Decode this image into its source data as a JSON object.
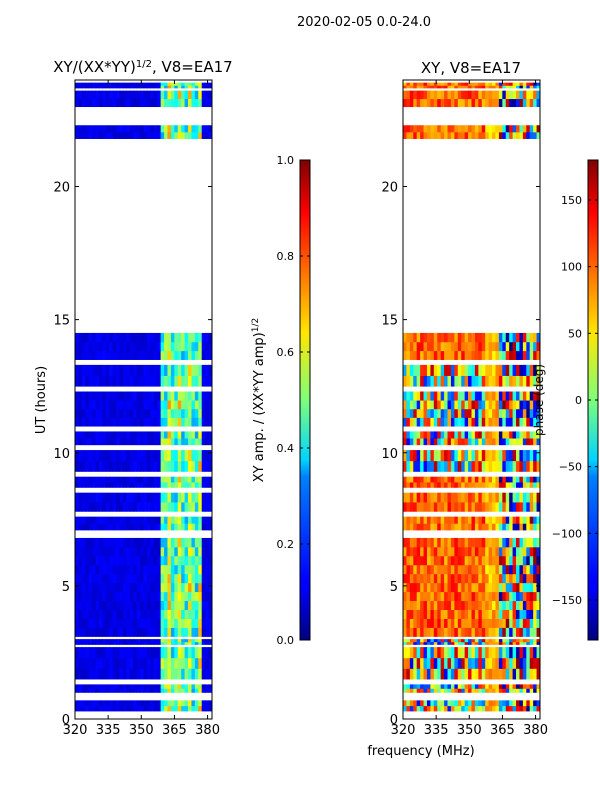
{
  "suptitle": "2020-02-05 0.0-24.0",
  "xlabel": "frequency (MHz)",
  "chart_data": [
    {
      "type": "heatmap",
      "title": "XY/(XX*YY)",
      "title_exponent": "1/2",
      "title_suffix": ", V8=EA17",
      "ylabel": "UT (hours)",
      "xlim": [
        320,
        382
      ],
      "ylim": [
        0,
        24
      ],
      "xticks": [
        320,
        335,
        350,
        365,
        380
      ],
      "yticks": [
        0,
        5,
        10,
        15,
        20
      ],
      "colormap": "jet",
      "data_segments_hours": [
        [
          0.3,
          0.7
        ],
        [
          1.0,
          1.3
        ],
        [
          1.5,
          2.7
        ],
        [
          2.8,
          3.0
        ],
        [
          3.1,
          6.8
        ],
        [
          7.1,
          7.6
        ],
        [
          7.8,
          8.5
        ],
        [
          8.7,
          9.1
        ],
        [
          9.3,
          10.1
        ],
        [
          10.3,
          10.8
        ],
        [
          11.0,
          12.3
        ],
        [
          12.5,
          13.3
        ],
        [
          13.5,
          14.5
        ],
        [
          21.8,
          22.3
        ],
        [
          23.0,
          23.6
        ],
        [
          23.7,
          23.9
        ]
      ],
      "colorbar": {
        "label": "XY amp. / (XX*YY amp)",
        "label_exponent": "1/2",
        "range": [
          0.0,
          1.0
        ],
        "ticks": [
          "0.0",
          "0.2",
          "0.4",
          "0.6",
          "0.8",
          "1.0"
        ],
        "tick_values": [
          0.0,
          0.2,
          0.4,
          0.6,
          0.8,
          1.0
        ]
      }
    },
    {
      "type": "heatmap",
      "title": "XY, V8=EA17",
      "ylabel": "",
      "xlim": [
        320,
        382
      ],
      "ylim": [
        0,
        24
      ],
      "xticks": [
        320,
        335,
        350,
        365,
        380
      ],
      "yticks": [
        0,
        5,
        10,
        15,
        20
      ],
      "colormap": "jet",
      "data_segments_hours": [
        [
          0.3,
          0.7
        ],
        [
          1.0,
          1.3
        ],
        [
          1.5,
          2.7
        ],
        [
          2.8,
          3.0
        ],
        [
          3.1,
          6.8
        ],
        [
          7.1,
          7.6
        ],
        [
          7.8,
          8.5
        ],
        [
          8.7,
          9.1
        ],
        [
          9.3,
          10.1
        ],
        [
          10.3,
          10.8
        ],
        [
          11.0,
          12.3
        ],
        [
          12.5,
          13.3
        ],
        [
          13.5,
          14.5
        ],
        [
          21.8,
          22.3
        ],
        [
          23.0,
          23.6
        ],
        [
          23.7,
          23.9
        ]
      ],
      "colorbar": {
        "label": "phase (deg)",
        "range": [
          -180,
          180
        ],
        "ticks": [
          "−150",
          "−100",
          "−50",
          "0",
          "50",
          "100",
          "150"
        ],
        "tick_values": [
          -150,
          -100,
          -50,
          0,
          50,
          100,
          150
        ]
      }
    }
  ]
}
